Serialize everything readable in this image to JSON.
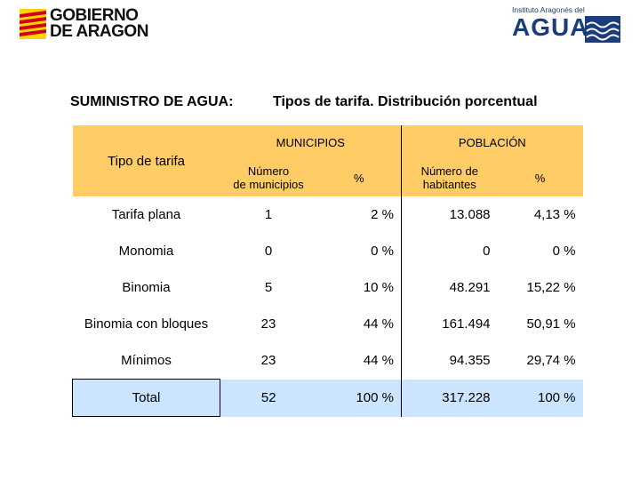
{
  "header": {
    "gov_logo_line1": "GOBIERNO",
    "gov_logo_line2": "DE ARAGON",
    "agency_logo_small": "Instituto Aragonés del",
    "agency_logo_big": "AGUA",
    "brand_color": "#1a3d7c"
  },
  "title": {
    "left": "SUMINISTRO DE AGUA:",
    "right": "Tipos de tarifa. Distribución porcentual"
  },
  "table": {
    "group_municipios": "MUNICIPIOS",
    "group_poblacion": "POBLACIÓN",
    "col_tipo": "Tipo de tarifa",
    "col_num_mun_1": "Número",
    "col_num_mun_2": "de municipios",
    "col_pct_mun": "%",
    "col_num_hab_1": "Número de",
    "col_num_hab_2": "habitantes",
    "col_pct_hab": "%",
    "header_color": "#ffcc66",
    "total_color": "#cce5ff",
    "rows": [
      {
        "tipo": "Tarifa plana",
        "mun": "1",
        "pct_mun": "2 %",
        "hab": "13.088",
        "pct_hab": "4,13 %"
      },
      {
        "tipo": "Monomia",
        "mun": "0",
        "pct_mun": "0 %",
        "hab": "0",
        "pct_hab": "0 %"
      },
      {
        "tipo": "Binomia",
        "mun": "5",
        "pct_mun": "10 %",
        "hab": "48.291",
        "pct_hab": "15,22 %"
      },
      {
        "tipo": "Binomia con bloques",
        "mun": "23",
        "pct_mun": "44 %",
        "hab": "161.494",
        "pct_hab": "50,91 %"
      },
      {
        "tipo": "Mínimos",
        "mun": "23",
        "pct_mun": "44 %",
        "hab": "94.355",
        "pct_hab": "29,74 %"
      }
    ],
    "total": {
      "tipo": "Total",
      "mun": "52",
      "pct_mun": "100 %",
      "hab": "317.228",
      "pct_hab": "100 %"
    }
  }
}
